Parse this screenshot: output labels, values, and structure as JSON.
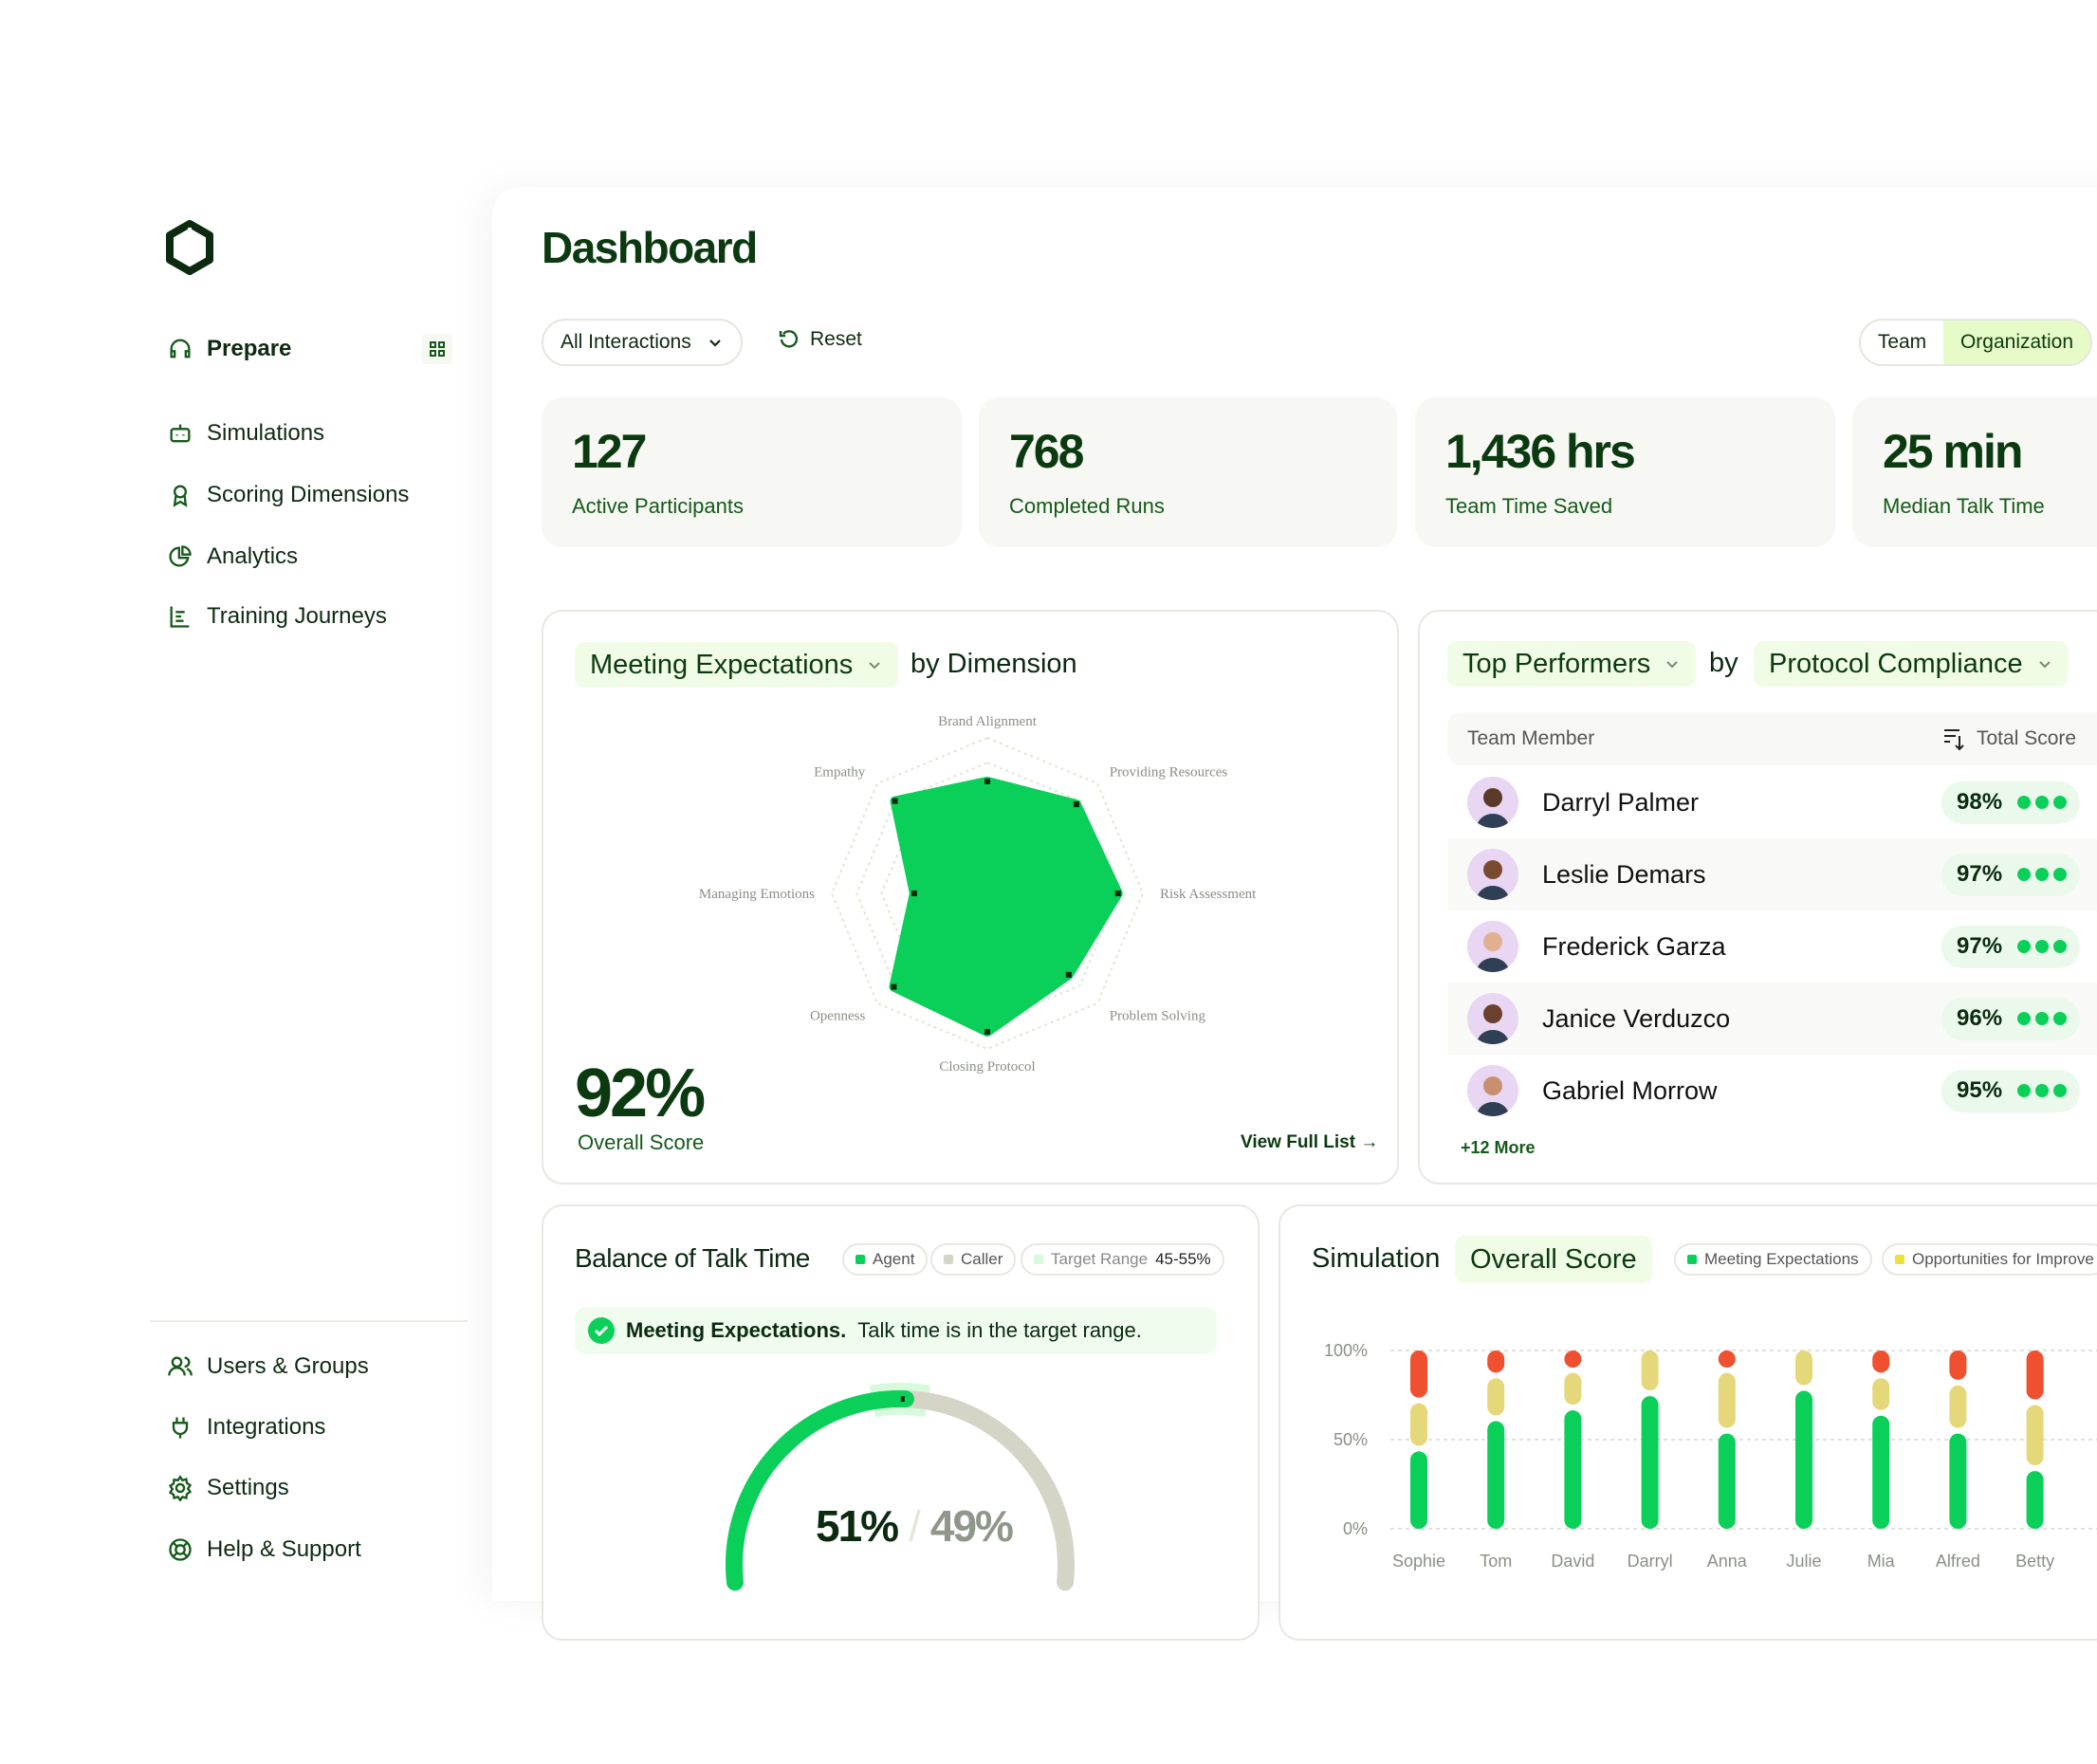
{
  "sidebar": {
    "logo": "hexagon-logo",
    "prepare": {
      "label": "Prepare",
      "icon": "headset-icon",
      "action_icon": "grid-icon"
    },
    "items": [
      {
        "label": "Simulations",
        "icon": "robot-icon"
      },
      {
        "label": "Scoring Dimensions",
        "icon": "award-icon"
      },
      {
        "label": "Analytics",
        "icon": "pie-chart-icon"
      },
      {
        "label": "Training Journeys",
        "icon": "list-chart-icon"
      }
    ],
    "bottom_items": [
      {
        "label": "Users & Groups",
        "icon": "users-icon"
      },
      {
        "label": "Integrations",
        "icon": "plug-icon"
      },
      {
        "label": "Settings",
        "icon": "gear-icon"
      },
      {
        "label": "Help & Support",
        "icon": "lifebuoy-icon"
      }
    ]
  },
  "header": {
    "title": "Dashboard",
    "filter": "All Interactions",
    "reset": "Reset",
    "toggle": [
      "Team",
      "Organization"
    ],
    "toggle_selected": "Organization"
  },
  "stats": [
    {
      "value": "127",
      "label": "Active Participants"
    },
    {
      "value": "768",
      "label": "Completed Runs"
    },
    {
      "value": "1,436 hrs",
      "label": "Team Time Saved"
    },
    {
      "value": "25 min",
      "label": "Median Talk Time"
    }
  ],
  "radar": {
    "selector": "Meeting Expectations",
    "suffix": "by Dimension",
    "overall_value": "92%",
    "overall_label": "Overall Score",
    "view_link": "View Full List →",
    "chart_data": {
      "type": "radar",
      "axes": [
        "Brand Alignment",
        "Providing Resources",
        "Risk Assessment",
        "Problem Solving",
        "Closing Protocol",
        "Openness",
        "Managing Emotions",
        "Empathy"
      ],
      "values": [
        72,
        81,
        84,
        74,
        89,
        85,
        47,
        84
      ],
      "range": [
        0,
        100
      ],
      "color": "#0acf58"
    }
  },
  "performers": {
    "selector": "Top Performers",
    "by": "by",
    "metric": "Protocol Compliance",
    "columns": [
      "Team Member",
      "Total Score"
    ],
    "rows": [
      {
        "name": "Darryl Palmer",
        "score": "98%"
      },
      {
        "name": "Leslie Demars",
        "score": "97%"
      },
      {
        "name": "Frederick Garza",
        "score": "97%"
      },
      {
        "name": "Janice Verduzco",
        "score": "96%"
      },
      {
        "name": "Gabriel Morrow",
        "score": "95%"
      }
    ],
    "more": "+12 More"
  },
  "talk": {
    "title": "Balance of Talk Time",
    "legend": {
      "agent": "Agent",
      "caller": "Caller",
      "target": "Target Range",
      "target_value": "45-55%"
    },
    "banner_bold": "Meeting Expectations.",
    "banner_text": "Talk time is in the target range.",
    "agent_value": "51%",
    "caller_value": "49%",
    "chart_data": {
      "type": "gauge",
      "agent": 51,
      "caller": 49,
      "target_range": [
        45,
        55
      ],
      "colors": {
        "agent": "#0acf58",
        "caller": "#d4d5c6",
        "target": "#d8fadc"
      }
    }
  },
  "simulation": {
    "title": "Simulation",
    "selector": "Overall Score",
    "legend": [
      "Meeting Expectations",
      "Opportunities for Improve"
    ],
    "chart_data": {
      "type": "bar",
      "stacked": true,
      "yticks": [
        "100%",
        "50%",
        "0%"
      ],
      "ylim": [
        0,
        100
      ],
      "categories": [
        "Sophie",
        "Tom",
        "David",
        "Darryl",
        "Anna",
        "Julie",
        "Mia",
        "Alfred",
        "Betty"
      ],
      "series": [
        {
          "name": "Meeting Expectations",
          "color": "#0acf58",
          "values": [
            45,
            62,
            68,
            76,
            55,
            79,
            65,
            55,
            34
          ]
        },
        {
          "name": "Opportunities for Improve",
          "color": "#e5d87a",
          "values": [
            27,
            24,
            21,
            24,
            34,
            21,
            21,
            27,
            37
          ]
        },
        {
          "color": "#ee5030",
          "values": [
            28,
            14,
            11,
            0,
            11,
            0,
            14,
            18,
            29
          ]
        }
      ]
    }
  },
  "colors": {
    "brand": "#0b3a10",
    "accent": "#0acf58",
    "pill_bg": "#f1fce6",
    "yellow": "#e5d87a",
    "red": "#ee5030"
  }
}
